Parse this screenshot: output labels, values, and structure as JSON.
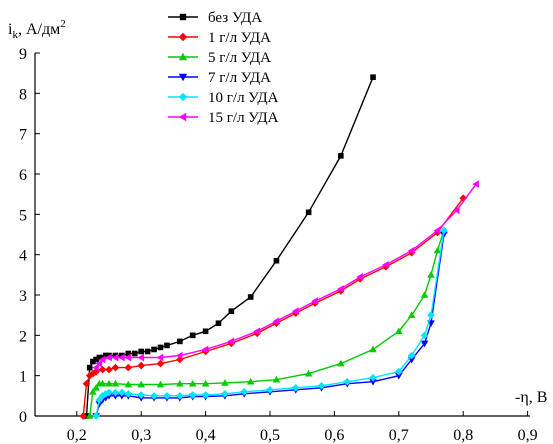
{
  "chart_data": {
    "type": "line",
    "ylabel": "i",
    "ylabel_sub": "k",
    "ylabel_unit": ", А/дм",
    "ylabel_sup": "2",
    "xlabel": "-η, В",
    "xlim": [
      0.15,
      0.9
    ],
    "ylim": [
      0,
      9
    ],
    "xticks": [
      "0,2",
      "0,3",
      "0,4",
      "0,5",
      "0,6",
      "0,7",
      "0,8",
      "0,9"
    ],
    "xtick_values": [
      0.2,
      0.3,
      0.4,
      0.5,
      0.6,
      0.7,
      0.8,
      0.9
    ],
    "yticks": [
      "0",
      "1",
      "2",
      "3",
      "4",
      "5",
      "6",
      "7",
      "8",
      "9"
    ],
    "ytick_values": [
      0,
      1,
      2,
      3,
      4,
      5,
      6,
      7,
      8,
      9
    ],
    "grid": false,
    "legend_position": "top-center",
    "series": [
      {
        "name": "без УДА",
        "color": "#000000",
        "marker": "square",
        "x": [
          0.215,
          0.22,
          0.225,
          0.23,
          0.235,
          0.24,
          0.245,
          0.25,
          0.26,
          0.27,
          0.28,
          0.29,
          0.3,
          0.31,
          0.32,
          0.33,
          0.34,
          0.36,
          0.38,
          0.4,
          0.42,
          0.44,
          0.47,
          0.51,
          0.56,
          0.61,
          0.66
        ],
        "y": [
          0,
          1.2,
          1.35,
          1.4,
          1.45,
          1.45,
          1.5,
          1.5,
          1.5,
          1.5,
          1.55,
          1.55,
          1.6,
          1.6,
          1.65,
          1.7,
          1.75,
          1.85,
          2.0,
          2.1,
          2.3,
          2.6,
          2.95,
          3.85,
          5.05,
          6.45,
          8.4
        ]
      },
      {
        "name": "1 г/л УДА",
        "color": "#ff0000",
        "marker": "diamond",
        "x": [
          0.21,
          0.215,
          0.22,
          0.225,
          0.23,
          0.24,
          0.25,
          0.26,
          0.28,
          0.3,
          0.33,
          0.36,
          0.4,
          0.44,
          0.48,
          0.51,
          0.54,
          0.57,
          0.61,
          0.64,
          0.68,
          0.72,
          0.76,
          0.8
        ],
        "y": [
          0,
          0.8,
          1.0,
          1.05,
          1.1,
          1.15,
          1.15,
          1.2,
          1.2,
          1.25,
          1.3,
          1.4,
          1.6,
          1.8,
          2.05,
          2.3,
          2.55,
          2.8,
          3.1,
          3.4,
          3.7,
          4.05,
          4.55,
          5.4
        ]
      },
      {
        "name": "5 г/л УДА",
        "color": "#00cc00",
        "marker": "triangle-up",
        "x": [
          0.22,
          0.225,
          0.23,
          0.235,
          0.24,
          0.25,
          0.26,
          0.28,
          0.3,
          0.33,
          0.36,
          0.38,
          0.4,
          0.43,
          0.47,
          0.51,
          0.56,
          0.61,
          0.66,
          0.7,
          0.72,
          0.74,
          0.75,
          0.76,
          0.77
        ],
        "y": [
          0,
          0.6,
          0.7,
          0.8,
          0.8,
          0.8,
          0.8,
          0.78,
          0.78,
          0.78,
          0.8,
          0.8,
          0.8,
          0.82,
          0.85,
          0.9,
          1.05,
          1.3,
          1.65,
          2.1,
          2.5,
          3.0,
          3.5,
          4.1,
          4.6
        ]
      },
      {
        "name": "7 г/л УДА",
        "color": "#0000ff",
        "marker": "triangle-down",
        "x": [
          0.23,
          0.235,
          0.24,
          0.245,
          0.25,
          0.26,
          0.27,
          0.28,
          0.3,
          0.32,
          0.34,
          0.36,
          0.38,
          0.4,
          0.43,
          0.46,
          0.5,
          0.54,
          0.58,
          0.62,
          0.66,
          0.7,
          0.72,
          0.74,
          0.75,
          0.77
        ],
        "y": [
          0,
          0.3,
          0.4,
          0.45,
          0.5,
          0.5,
          0.5,
          0.5,
          0.45,
          0.45,
          0.45,
          0.45,
          0.48,
          0.48,
          0.5,
          0.55,
          0.6,
          0.65,
          0.7,
          0.8,
          0.85,
          1.0,
          1.4,
          1.8,
          2.3,
          4.5
        ]
      },
      {
        "name": "10 г/л УДА",
        "color": "#00e5ff",
        "marker": "diamond",
        "x": [
          0.23,
          0.235,
          0.24,
          0.245,
          0.25,
          0.26,
          0.27,
          0.28,
          0.3,
          0.32,
          0.34,
          0.36,
          0.38,
          0.4,
          0.43,
          0.46,
          0.5,
          0.54,
          0.58,
          0.62,
          0.66,
          0.7,
          0.72,
          0.74,
          0.75,
          0.77
        ],
        "y": [
          0,
          0.4,
          0.5,
          0.55,
          0.58,
          0.58,
          0.58,
          0.55,
          0.52,
          0.5,
          0.5,
          0.5,
          0.52,
          0.52,
          0.55,
          0.6,
          0.65,
          0.7,
          0.75,
          0.85,
          0.95,
          1.1,
          1.5,
          2.0,
          2.5,
          4.6
        ]
      },
      {
        "name": "15 г/л УДА",
        "color": "#ff00ff",
        "marker": "triangle-left",
        "x": [
          0.23,
          0.235,
          0.24,
          0.25,
          0.26,
          0.27,
          0.28,
          0.3,
          0.33,
          0.36,
          0.4,
          0.44,
          0.48,
          0.51,
          0.54,
          0.57,
          0.61,
          0.64,
          0.68,
          0.72,
          0.76,
          0.79,
          0.82
        ],
        "y": [
          1.2,
          1.3,
          1.4,
          1.45,
          1.45,
          1.45,
          1.45,
          1.45,
          1.45,
          1.5,
          1.65,
          1.85,
          2.1,
          2.35,
          2.6,
          2.85,
          3.15,
          3.45,
          3.75,
          4.1,
          4.6,
          5.1,
          5.75
        ]
      }
    ]
  }
}
